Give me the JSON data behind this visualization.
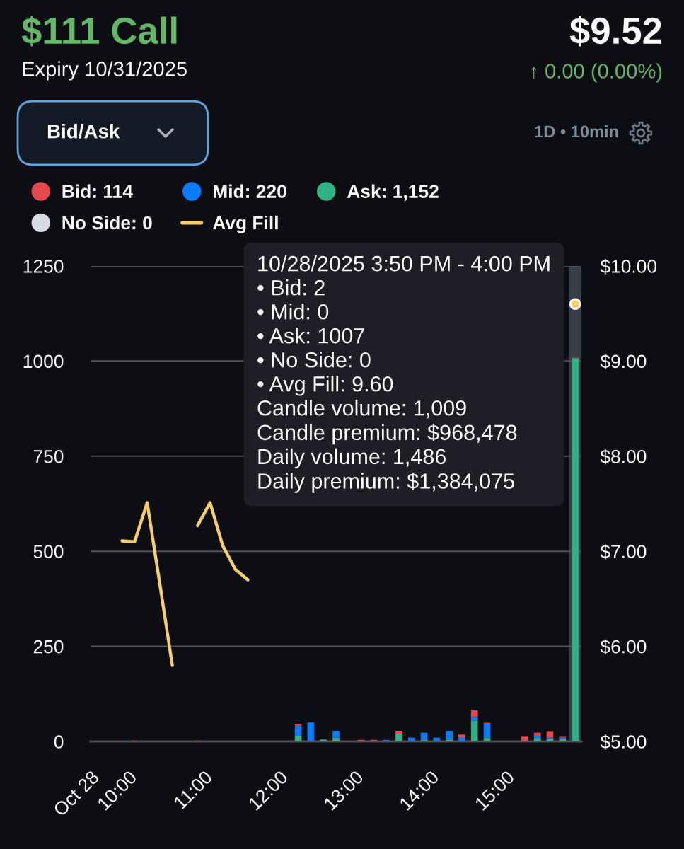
{
  "chart_data": {
    "type": "bar",
    "title": "$111 Call",
    "subtitle": "Expiry 10/31/2025",
    "annotations": [
      "$9.52",
      "↑ 0.00 (0.00%)",
      "Bid/Ask",
      "1D • 10min",
      "10/28/2025 3:50 PM - 4:00 PM\n• Bid: 2\n• Mid: 0\n• Ask: 1007\n• No Side: 0\n• Avg Fill: 9.60\nCandle volume: 1,009\nCandle premium: $968,478\nDaily volume: 1,486\nDaily premium: $1,384,075"
    ],
    "x": [
      10.083,
      10.917,
      12.25,
      12.417,
      12.583,
      12.75,
      13.083,
      13.25,
      13.417,
      13.583,
      13.75,
      13.917,
      14.083,
      14.25,
      14.417,
      14.583,
      14.75,
      15.25,
      15.417,
      15.583,
      15.75,
      15.917
    ],
    "xlim": [
      9.5,
      16.0
    ],
    "xticks": [
      {
        "value": 9.5,
        "label": "Oct 28"
      },
      {
        "value": 10,
        "label": "10:00"
      },
      {
        "value": 11,
        "label": "11:00"
      },
      {
        "value": 12,
        "label": "12:00"
      },
      {
        "value": 13,
        "label": "13:00"
      },
      {
        "value": 14,
        "label": "14:00"
      },
      {
        "value": 15,
        "label": "15:00"
      }
    ],
    "ylim": [
      0,
      1250
    ],
    "yticks": [
      0,
      250,
      500,
      750,
      1000,
      1250
    ],
    "y2lim": [
      5,
      10
    ],
    "y2ticks": [
      {
        "value": 5,
        "label": "$5.00"
      },
      {
        "value": 6,
        "label": "$6.00"
      },
      {
        "value": 7,
        "label": "$7.00"
      },
      {
        "value": 8,
        "label": "$8.00"
      },
      {
        "value": 9,
        "label": "$9.00"
      },
      {
        "value": 10,
        "label": "$10.00"
      }
    ],
    "stacked": true,
    "grid": "y",
    "legend": "top",
    "bands": [
      {
        "axis": "x",
        "from": 15.833,
        "to": 16.0,
        "color": "#393d48"
      }
    ],
    "series": [
      {
        "name": "No Side: 0",
        "color": "#d8dce2",
        "values": [
          0,
          0,
          0,
          0,
          0,
          0,
          0,
          0,
          0,
          0,
          0,
          0,
          0,
          0,
          0,
          0,
          0,
          0,
          0,
          0,
          0,
          0
        ]
      },
      {
        "name": "Ask: 1,152",
        "color": "#2fb386",
        "values": [
          0,
          0,
          15,
          0,
          5,
          10,
          0,
          0,
          0,
          19,
          0,
          5,
          0,
          5,
          0,
          55,
          10,
          0,
          9,
          6,
          6,
          1007
        ]
      },
      {
        "name": "Mid: 220",
        "color": "#0b7bff",
        "values": [
          0,
          0,
          27,
          50,
          0,
          18,
          0,
          0,
          4,
          0,
          10,
          18,
          10,
          23,
          11,
          9,
          35,
          0,
          6,
          4,
          4,
          0
        ]
      },
      {
        "name": "Bid: 114",
        "color": "#e5484d",
        "values": [
          2,
          2,
          4,
          0,
          0,
          0,
          4,
          4,
          0,
          9,
          0,
          0,
          0,
          0,
          7,
          18,
          4,
          14,
          8,
          17,
          4,
          2
        ]
      },
      {
        "name": "Avg Fill",
        "type": "line",
        "axis": "y2",
        "color": "#f6cf6a",
        "x": [
          9.917,
          10.083,
          10.25,
          10.417,
          10.583,
          10.75,
          10.917,
          11.083,
          11.25,
          11.417,
          11.583,
          11.75,
          15.917
        ],
        "values": [
          7.11,
          7.1,
          7.51,
          6.66,
          5.8,
          null,
          7.27,
          7.51,
          7.06,
          6.81,
          6.7,
          null,
          9.6
        ]
      }
    ]
  }
}
